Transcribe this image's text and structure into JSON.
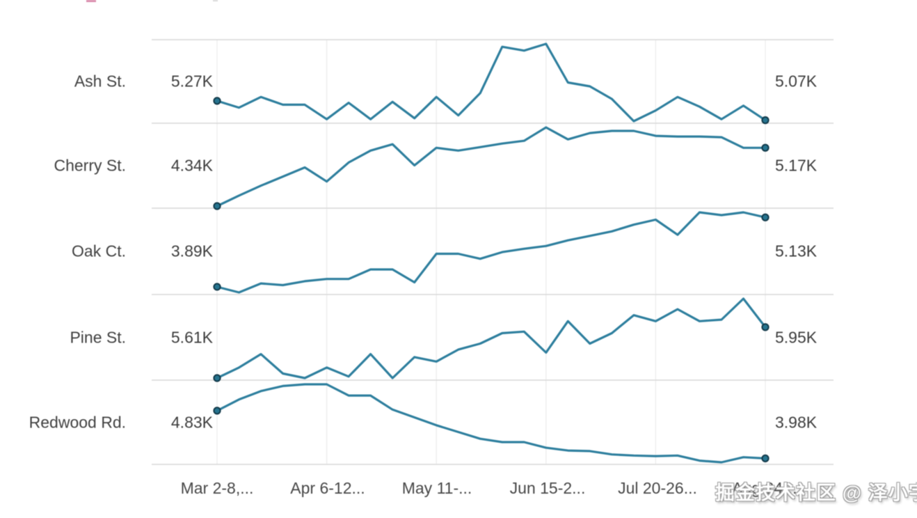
{
  "watermark": {
    "text": "掘金技术社区 @ 泽小宇"
  },
  "chart_data": {
    "type": "line",
    "title": "",
    "layout": "small-multiples sparklines, one row per street, grid on, no legend",
    "unit": "K",
    "points_per_series": 26,
    "x_tick_labels": [
      "Mar 2-8,...",
      "Apr 6-12...",
      "May 11-...",
      "Jun 15-2...",
      "Jul 20-26...",
      "Aug 24-..."
    ],
    "line_color": "#2e7f9e",
    "point_fill": "#26748f",
    "point_stroke": "#123a4a",
    "grid_color_h": "#d7d7d7",
    "grid_color_v": "#ededed",
    "rows": [
      {
        "label": "Ash St.",
        "start_label": "5.27K",
        "end_label": "5.07K",
        "values_k": [
          5.27,
          5.2,
          5.31,
          5.23,
          5.23,
          5.08,
          5.25,
          5.08,
          5.26,
          5.09,
          5.31,
          5.12,
          5.35,
          5.83,
          5.79,
          5.86,
          5.46,
          5.42,
          5.29,
          5.06,
          5.17,
          5.31,
          5.21,
          5.08,
          5.22,
          5.07
        ]
      },
      {
        "label": "Cherry St.",
        "start_label": "4.34K",
        "end_label": "5.17K",
        "values_k": [
          4.34,
          4.49,
          4.63,
          4.76,
          4.89,
          4.69,
          4.96,
          5.13,
          5.22,
          4.92,
          5.17,
          5.13,
          5.18,
          5.23,
          5.27,
          5.46,
          5.29,
          5.38,
          5.41,
          5.41,
          5.34,
          5.33,
          5.33,
          5.32,
          5.17,
          5.17
        ]
      },
      {
        "label": "Oak Ct.",
        "start_label": "3.89K",
        "end_label": "5.13K",
        "values_k": [
          3.89,
          3.79,
          3.95,
          3.92,
          3.99,
          4.03,
          4.03,
          4.2,
          4.2,
          3.97,
          4.48,
          4.48,
          4.39,
          4.51,
          4.57,
          4.62,
          4.72,
          4.8,
          4.88,
          5.0,
          5.09,
          4.82,
          5.22,
          5.17,
          5.22,
          5.13
        ]
      },
      {
        "label": "Pine St.",
        "start_label": "5.61K",
        "end_label": "5.95K",
        "values_k": [
          5.61,
          5.68,
          5.77,
          5.64,
          5.61,
          5.68,
          5.62,
          5.77,
          5.61,
          5.75,
          5.72,
          5.8,
          5.84,
          5.91,
          5.92,
          5.78,
          5.99,
          5.84,
          5.91,
          6.03,
          5.99,
          6.07,
          5.99,
          6.0,
          6.14,
          5.95
        ]
      },
      {
        "label": "Redwood Rd.",
        "start_label": "4.83K",
        "end_label": "3.98K",
        "values_k": [
          4.83,
          5.03,
          5.18,
          5.27,
          5.3,
          5.3,
          5.1,
          5.1,
          4.85,
          4.71,
          4.57,
          4.45,
          4.33,
          4.27,
          4.27,
          4.17,
          4.12,
          4.11,
          4.05,
          4.03,
          4.02,
          4.03,
          3.94,
          3.91,
          4.0,
          3.98
        ]
      }
    ]
  }
}
